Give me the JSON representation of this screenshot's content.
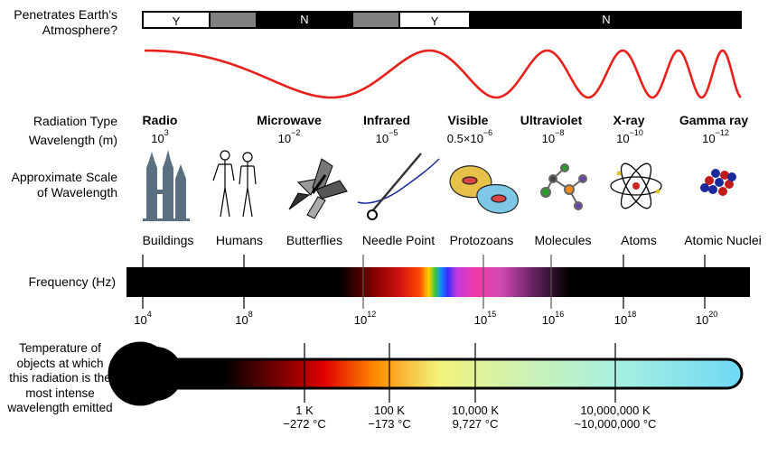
{
  "labels": {
    "atmosphere": [
      "Penetrates Earth's",
      "Atmosphere?"
    ],
    "radiation_type": "Radiation Type",
    "wavelength": "Wavelength (m)",
    "approx_scale": [
      "Approximate Scale",
      "of Wavelength"
    ],
    "frequency": "Frequency (Hz)",
    "temperature": [
      "Temperature of",
      "objects at which",
      "this radiation is the",
      "most intense",
      "wavelength emitted"
    ]
  },
  "atmosphere_segments": [
    {
      "label": "Y",
      "value": "transparent"
    },
    {
      "label": "",
      "value": "partial"
    },
    {
      "label": "N",
      "value": "opaque"
    },
    {
      "label": "",
      "value": "partial"
    },
    {
      "label": "Y",
      "value": "transparent"
    },
    {
      "label": "N",
      "value": "opaque"
    }
  ],
  "radiation_types": [
    {
      "name": "Radio",
      "wl_base": "10",
      "wl_exp": "3"
    },
    {
      "name": "Microwave",
      "wl_base": "10",
      "wl_exp": "−2"
    },
    {
      "name": "Infrared",
      "wl_base": "10",
      "wl_exp": "−5"
    },
    {
      "name": "Visible",
      "wl_base": "0.5×10",
      "wl_exp": "−6"
    },
    {
      "name": "Ultraviolet",
      "wl_base": "10",
      "wl_exp": "−8"
    },
    {
      "name": "X-ray",
      "wl_base": "10",
      "wl_exp": "−10"
    },
    {
      "name": "Gamma ray",
      "wl_base": "10",
      "wl_exp": "−12"
    }
  ],
  "scale_objects": [
    {
      "name": "Buildings",
      "icon": "buildings-icon"
    },
    {
      "name": "Humans",
      "icon": "humans-icon"
    },
    {
      "name": "Butterflies",
      "icon": "butterfly-icon"
    },
    {
      "name": "Needle Point",
      "icon": "needle-icon"
    },
    {
      "name": "Protozoans",
      "icon": "protozoan-icon"
    },
    {
      "name": "Molecules",
      "icon": "molecule-icon"
    },
    {
      "name": "Atoms",
      "icon": "atom-icon"
    },
    {
      "name": "Atomic Nuclei",
      "icon": "nucleus-icon"
    }
  ],
  "frequencies": [
    {
      "base": "10",
      "exp": "4"
    },
    {
      "base": "10",
      "exp": "8"
    },
    {
      "base": "10",
      "exp": "12"
    },
    {
      "base": "10",
      "exp": "15"
    },
    {
      "base": "10",
      "exp": "16"
    },
    {
      "base": "10",
      "exp": "18"
    },
    {
      "base": "10",
      "exp": "20"
    }
  ],
  "temperatures": [
    {
      "kelvin": "1 K",
      "celsius": "−272 °C"
    },
    {
      "kelvin": "100 K",
      "celsius": "−173 °C"
    },
    {
      "kelvin": "10,000 K",
      "celsius": "9,727 °C"
    },
    {
      "kelvin": "10,000,000 K",
      "celsius": "~10,000,000 °C"
    }
  ],
  "colors": {
    "wave": "#e8201c",
    "opaque": "#000000",
    "partial": "#808080",
    "thermometer_outline": "#000000"
  }
}
